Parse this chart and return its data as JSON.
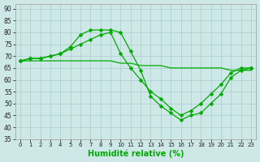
{
  "xlabel": "Humidité relative (%)",
  "background_color": "#cee8e8",
  "grid_color": "#aacccc",
  "line_color": "#00aa00",
  "markersize": 2.5,
  "linewidth": 0.9,
  "xlim": [
    -0.5,
    23.5
  ],
  "ylim": [
    35,
    92
  ],
  "yticks": [
    35,
    40,
    45,
    50,
    55,
    60,
    65,
    70,
    75,
    80,
    85,
    90
  ],
  "xticks": [
    0,
    1,
    2,
    3,
    4,
    5,
    6,
    7,
    8,
    9,
    10,
    11,
    12,
    13,
    14,
    15,
    16,
    17,
    18,
    19,
    20,
    21,
    22,
    23
  ],
  "series": [
    {
      "y": [
        68,
        69,
        69,
        70,
        71,
        74,
        79,
        81,
        81,
        81,
        80,
        72,
        64,
        53,
        49,
        46,
        43,
        45,
        46,
        50,
        54,
        61,
        64,
        65
      ],
      "marker": true
    },
    {
      "y": [
        68,
        69,
        69,
        70,
        71,
        73,
        75,
        77,
        79,
        80,
        71,
        65,
        60,
        55,
        52,
        48,
        45,
        47,
        50,
        54,
        58,
        63,
        65,
        65
      ],
      "marker": true
    },
    {
      "y": [
        68,
        68,
        68,
        68,
        68,
        68,
        68,
        68,
        68,
        68,
        67,
        67,
        66,
        66,
        66,
        65,
        65,
        65,
        65,
        65,
        65,
        64,
        64,
        64
      ],
      "marker": false
    }
  ]
}
